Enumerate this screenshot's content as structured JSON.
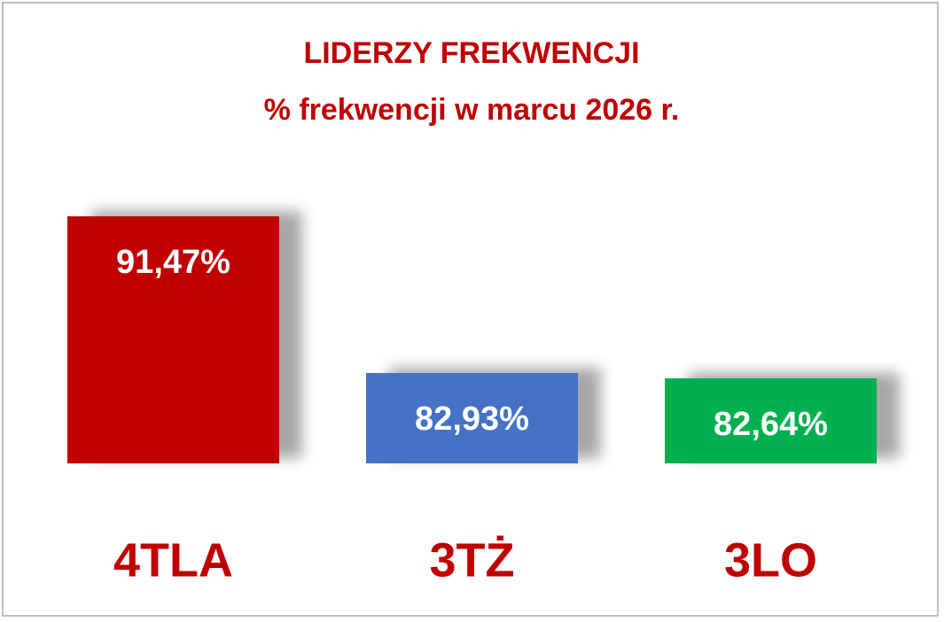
{
  "chart_data": {
    "type": "bar",
    "title": "LIDERZY FREKWENCJI",
    "subtitle": "% frekwencji w marcu 2026 r.",
    "categories": [
      "4TLA",
      "3TŻ",
      "3LO"
    ],
    "values": [
      91.47,
      82.93,
      82.64
    ],
    "value_labels": [
      "91,47%",
      "82,93%",
      "82,64%"
    ],
    "colors": [
      "#c00000",
      "#4472c4",
      "#00b050"
    ],
    "ylim": [
      78,
      93
    ]
  }
}
